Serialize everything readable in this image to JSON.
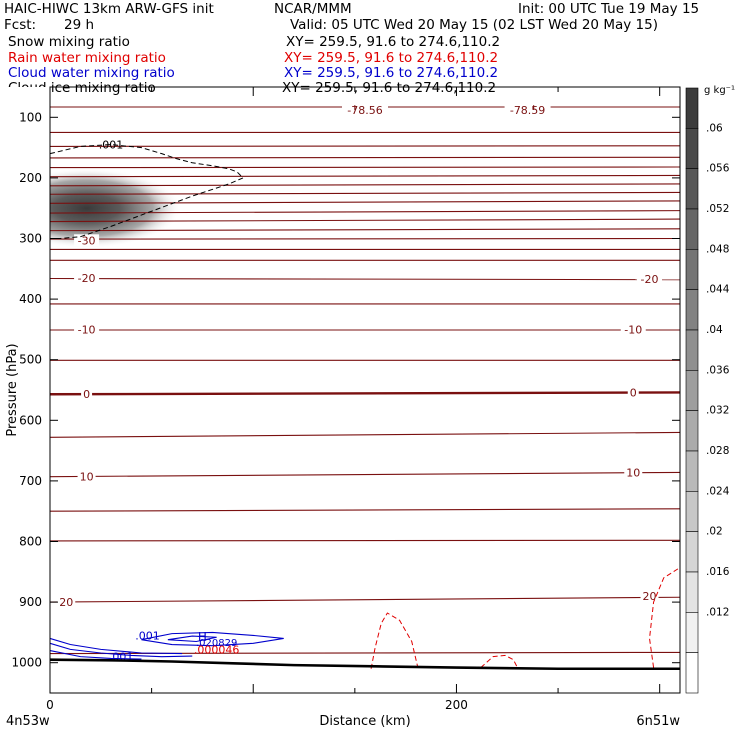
{
  "header": {
    "model": "HAIC-HIWC 13km ARW-GFS init",
    "org": "NCAR/MMM",
    "init": "Init: 00 UTC Tue 19 May 15",
    "fcst_label": "Fcst:",
    "fcst_value": "29 h",
    "valid": "Valid: 05 UTC Wed 20 May 15 (02 LST Wed 20 May 15)",
    "fields": [
      {
        "name": "Snow mixing ratio",
        "xy": "XY= 259.5, 91.6 to 274.6,110.2",
        "color": "#000000"
      },
      {
        "name": "Rain water mixing ratio",
        "xy": "XY= 259.5, 91.6 to 274.6,110.2",
        "color": "#e00000"
      },
      {
        "name": "Cloud water mixing ratio",
        "xy": "XY= 259.5, 91.6 to 274.6,110.2",
        "color": "#0000cc"
      },
      {
        "name": "Cloud ice mixing ratio",
        "xy": "XY= 259.5, 91.6 to 274.6,110.2",
        "color": "#000000"
      }
    ]
  },
  "chart_data": {
    "type": "cross-section",
    "xlabel": "Distance (km)",
    "ylabel": "Pressure (hPa)",
    "xlim": [
      0,
      310
    ],
    "x_ticks": [
      0,
      200
    ],
    "ylim": [
      1050,
      50
    ],
    "y_ticks": [
      100,
      200,
      300,
      400,
      500,
      600,
      700,
      800,
      900,
      1000
    ],
    "x_endpoints": {
      "left": "4n53w",
      "right": "6n51w"
    },
    "colorbar": {
      "unit": "g kg⁻¹",
      "labels": [
        ".06",
        ".056",
        ".052",
        ".048",
        ".044",
        ".04",
        ".036",
        ".032",
        ".028",
        ".024",
        ".02",
        ".016",
        ".012"
      ]
    },
    "temperature_contours": {
      "color": "#7a1010",
      "labels": [
        {
          "text": "-78.56",
          "x": 155,
          "p": 88
        },
        {
          "text": "-78.59",
          "x": 235,
          "p": 88
        },
        {
          "text": "-30",
          "x": 18,
          "p": 303
        },
        {
          "text": "-20",
          "x": 18,
          "p": 365
        },
        {
          "text": "-20",
          "x": 295,
          "p": 367
        },
        {
          "text": "-10",
          "x": 18,
          "p": 450
        },
        {
          "text": "-10",
          "x": 287,
          "p": 450
        },
        {
          "text": "0",
          "x": 18,
          "p": 557
        },
        {
          "text": "0",
          "x": 287,
          "p": 554
        },
        {
          "text": "10",
          "x": 18,
          "p": 693
        },
        {
          "text": "10",
          "x": 287,
          "p": 686
        },
        {
          "text": "20",
          "x": 8,
          "p": 900
        },
        {
          "text": "20",
          "x": 295,
          "p": 890
        }
      ],
      "levels_p_left": [
        83,
        125,
        148,
        167,
        183,
        198,
        213,
        227,
        242,
        258,
        272,
        287,
        301,
        318,
        336,
        366,
        408,
        451,
        501,
        557,
        628,
        693,
        750,
        799,
        900,
        985
      ],
      "levels_p_right": [
        83,
        125,
        147,
        166,
        182,
        196,
        210,
        224,
        238,
        254,
        268,
        284,
        300,
        318,
        336,
        368,
        408,
        451,
        501,
        554,
        620,
        686,
        746,
        798,
        892,
        983
      ]
    },
    "snow_contour": {
      "label": ".001",
      "x": [
        0,
        15,
        30,
        45,
        55,
        62,
        70,
        80,
        88,
        92,
        95,
        88,
        70,
        50,
        30,
        15,
        5,
        0
      ],
      "p": [
        160,
        148,
        145,
        150,
        160,
        168,
        175,
        180,
        185,
        190,
        200,
        210,
        230,
        255,
        280,
        297,
        300,
        300
      ]
    },
    "snow_max": {
      "x": 18,
      "p": 250
    },
    "cloud_water_labels": [
      ".001",
      "H",
      ".020829",
      ".001"
    ],
    "rain_labels": [
      ".000046"
    ],
    "terrain_p": [
      995,
      996,
      998,
      1001,
      1004,
      1006,
      1008,
      1010,
      1010
    ],
    "terrain_x": [
      0,
      30,
      60,
      90,
      120,
      160,
      200,
      250,
      310
    ]
  }
}
